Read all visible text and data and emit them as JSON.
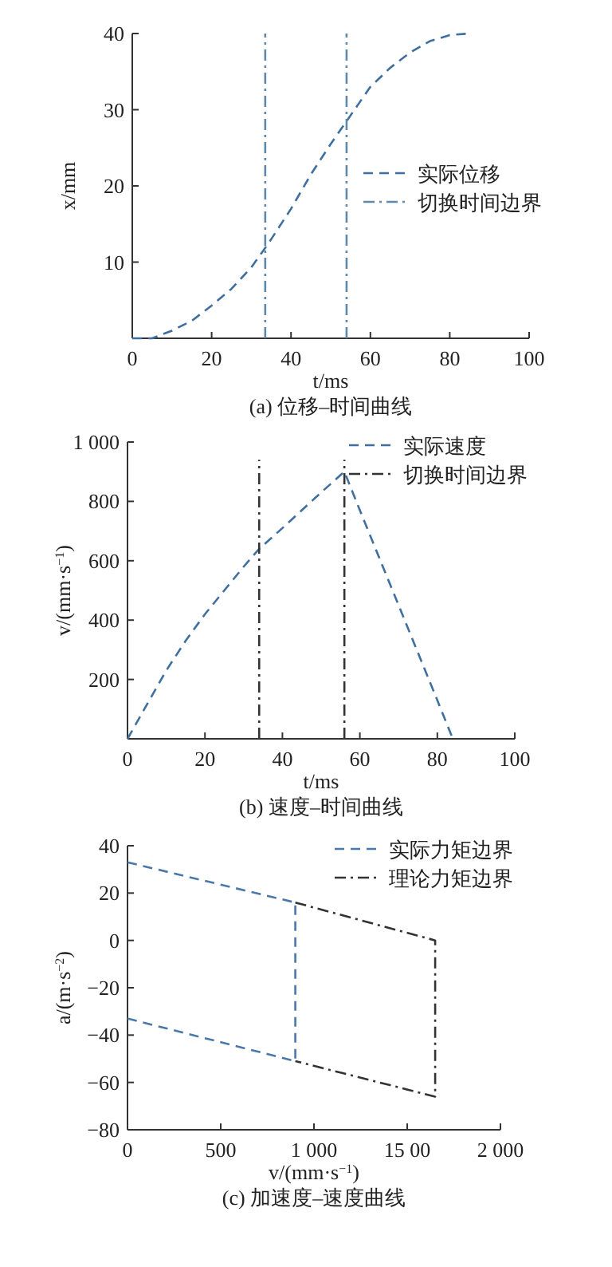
{
  "chart_data": [
    {
      "type": "line",
      "title": "(a) 位移–时间曲线",
      "xlabel": "t/ms",
      "ylabel": "x/mm",
      "xlim": [
        0,
        100
      ],
      "xticks": [
        0,
        20,
        40,
        60,
        80,
        100
      ],
      "ylim": [
        0,
        40
      ],
      "yticks": [
        {
          "value": 0,
          "label": null
        },
        10,
        20,
        30,
        40
      ],
      "grid": false,
      "legend": "right",
      "series": [
        {
          "name": "实际位移",
          "color": "#3f6f9f",
          "line_style": "dashed",
          "x": [
            0,
            5,
            10,
            15,
            20,
            25,
            30,
            33,
            35,
            40,
            45,
            50,
            54,
            60,
            65,
            70,
            75,
            80,
            85
          ],
          "values": [
            0,
            0,
            1,
            2.3,
            4.3,
            6.5,
            9.3,
            11.5,
            13,
            17,
            21.5,
            25.5,
            28.5,
            33,
            35.5,
            37.5,
            39,
            39.8,
            40
          ]
        },
        {
          "name": "切换时间边界",
          "color": "#5f88aa",
          "line_style": "dashdot",
          "x": [
            33.5,
            33.5,
            null,
            54,
            54
          ],
          "values": [
            0,
            40,
            null,
            0,
            40
          ]
        }
      ]
    },
    {
      "type": "line",
      "title": "(b) 速度–时间曲线",
      "xlabel": "t/ms",
      "ylabel": "v/(mm·s$^{−1}$)",
      "xlim": [
        0,
        100
      ],
      "xticks": [
        0,
        20,
        40,
        60,
        80,
        100
      ],
      "ylim": [
        0,
        1000
      ],
      "yticks": [
        {
          "value": 0,
          "label": null
        },
        200,
        400,
        600,
        800,
        {
          "value": 1000,
          "label": "1 000"
        }
      ],
      "grid": false,
      "legend": "top right",
      "series": [
        {
          "name": "实际速度",
          "color": "#3f6f9f",
          "line_style": "dashed",
          "x": [
            0,
            5,
            10,
            15,
            20,
            25,
            30,
            34,
            40,
            45,
            50,
            56,
            60,
            70,
            80,
            84
          ],
          "values": [
            0,
            115,
            230,
            330,
            420,
            500,
            580,
            640,
            710,
            770,
            830,
            900,
            770,
            450,
            130,
            0
          ]
        },
        {
          "name": "切换时间边界",
          "color": "#333333",
          "line_style": "dashdot",
          "x": [
            34,
            34,
            null,
            56,
            56
          ],
          "values": [
            0,
            940,
            null,
            0,
            940
          ]
        }
      ]
    },
    {
      "type": "line",
      "title": "(c) 加速度–速度曲线",
      "xlabel": "v/(mm·s$^{−1}$)",
      "ylabel": "a/(m·s$^{−2}$)",
      "xlim": [
        0,
        2000
      ],
      "xticks": [
        0,
        500,
        {
          "value": 1000,
          "label": "1 000"
        },
        {
          "value": 1500,
          "label": "15 00"
        },
        {
          "value": 2000,
          "label": "2 000"
        }
      ],
      "ylim": [
        -80,
        40
      ],
      "yticks": [
        {
          "value": -80,
          "label": "−80"
        },
        {
          "value": -60,
          "label": "−60"
        },
        {
          "value": -40,
          "label": "−40"
        },
        {
          "value": -20,
          "label": "−20"
        },
        0,
        20,
        40
      ],
      "grid": false,
      "legend": "top right",
      "series": [
        {
          "name": "实际力矩边界",
          "color": "#4a78a8",
          "line_style": "dashed",
          "x": [
            0,
            900,
            900,
            null,
            0,
            900
          ],
          "values": [
            33,
            16,
            -51,
            null,
            -33,
            -51
          ]
        },
        {
          "name": "理论力矩边界",
          "color": "#333333",
          "line_style": "dashdot",
          "x": [
            900,
            1650,
            1650,
            900
          ],
          "values": [
            16,
            0,
            -66,
            -51
          ]
        }
      ]
    }
  ]
}
